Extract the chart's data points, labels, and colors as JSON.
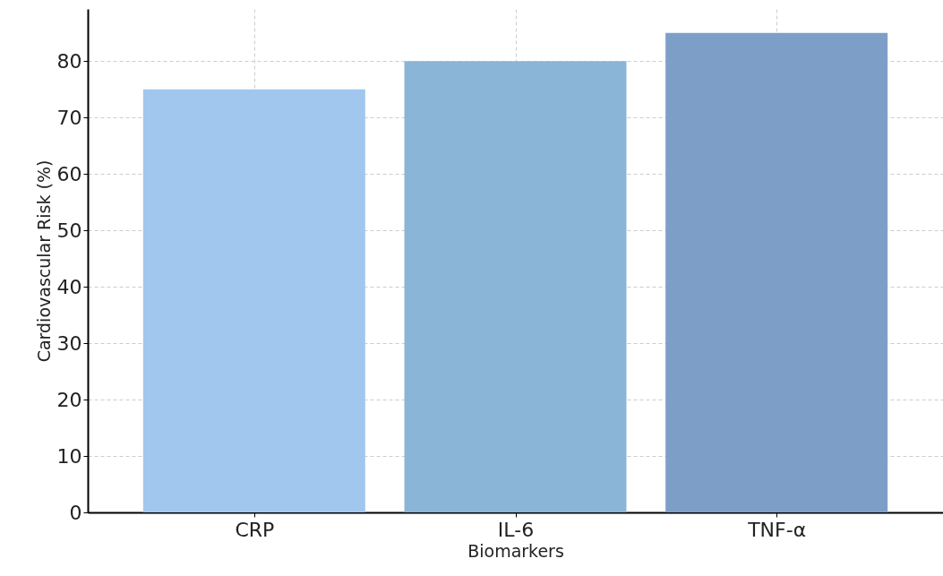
{
  "chart_data": {
    "type": "bar",
    "xlabel": "Biomarkers",
    "ylabel": "Cardiovascular Risk (%)",
    "categories": [
      "CRP",
      "IL-6",
      "TNF-α"
    ],
    "values": [
      75,
      80,
      85
    ],
    "colors": [
      "#a1c7ee",
      "#8ab5d7",
      "#7d9fc7"
    ],
    "ylim": [
      0,
      89.25
    ],
    "yticks": [
      0,
      10,
      20,
      30,
      40,
      50,
      60,
      70,
      80
    ],
    "grid": true
  }
}
